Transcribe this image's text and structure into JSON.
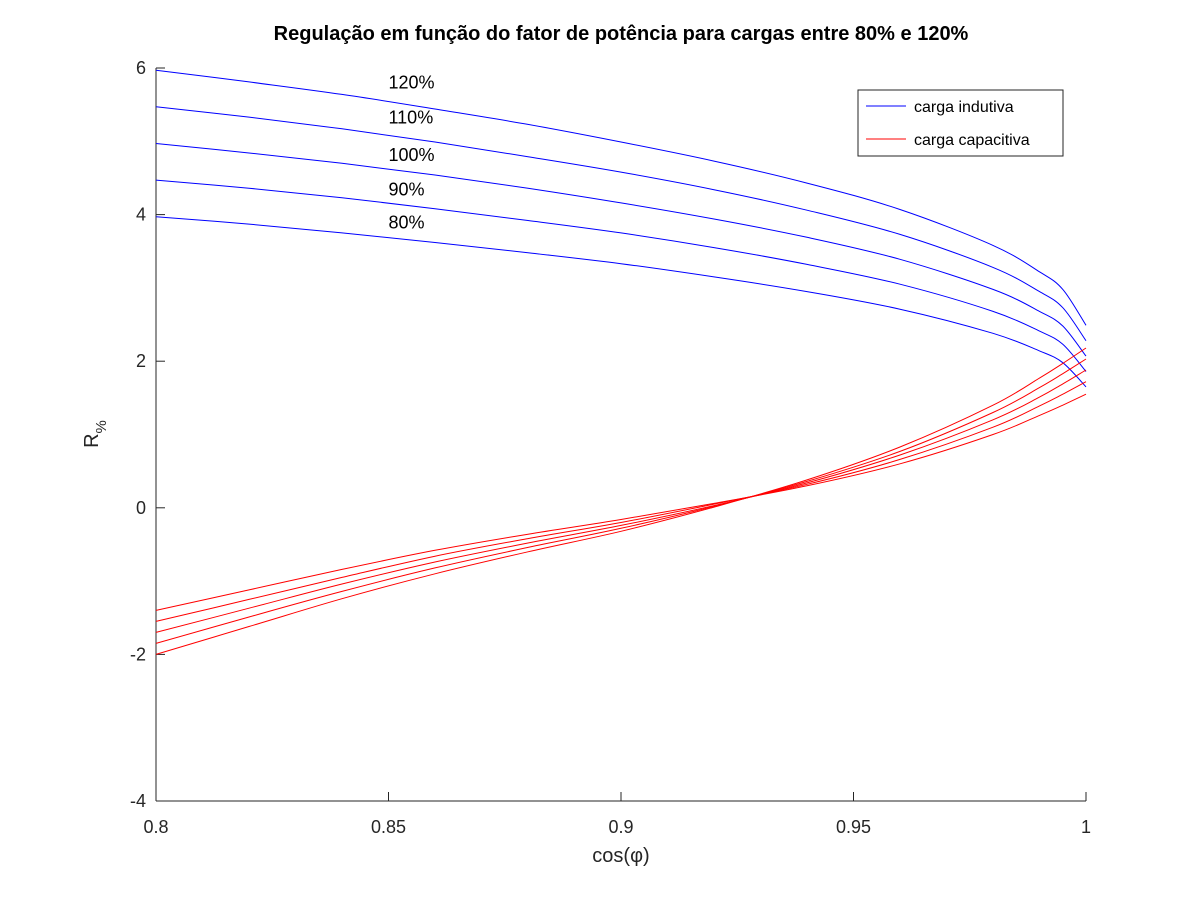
{
  "chart_data": {
    "type": "line",
    "title": "Regulação em função do fator de potência para cargas entre 80% e 120%",
    "xlabel": "cos(φ)",
    "ylabel_main": "R",
    "ylabel_sub": "%",
    "xlim": [
      0.8,
      1.0
    ],
    "ylim": [
      -4,
      6
    ],
    "xticks": [
      0.8,
      0.85,
      0.9,
      0.95,
      1.0
    ],
    "xtick_labels": [
      "0.8",
      "0.85",
      "0.9",
      "0.95",
      "1"
    ],
    "yticks": [
      -4,
      -2,
      0,
      2,
      4,
      6
    ],
    "ytick_labels": [
      "-4",
      "-2",
      "0",
      "2",
      "4",
      "6"
    ],
    "grid": false,
    "legend_position": "top-right",
    "legend": [
      {
        "label": "carga indutiva",
        "color": "#0000ff"
      },
      {
        "label": "carga capacitiva",
        "color": "#ff0000"
      }
    ],
    "x": [
      0.8,
      0.82,
      0.84,
      0.86,
      0.88,
      0.9,
      0.92,
      0.94,
      0.96,
      0.98,
      0.99,
      0.995,
      1.0
    ],
    "series": [
      {
        "name": "80% indutiva",
        "load": "80%",
        "kind": "indutiva",
        "color": "#0000ff",
        "values": [
          3.97,
          3.87,
          3.75,
          3.62,
          3.48,
          3.33,
          3.15,
          2.95,
          2.71,
          2.38,
          2.14,
          1.98,
          1.65
        ]
      },
      {
        "name": "90% indutiva",
        "load": "90%",
        "kind": "indutiva",
        "color": "#0000ff",
        "values": [
          4.47,
          4.36,
          4.23,
          4.08,
          3.92,
          3.75,
          3.55,
          3.32,
          3.05,
          2.68,
          2.41,
          2.23,
          1.86
        ]
      },
      {
        "name": "100% indutiva",
        "load": "100%",
        "kind": "indutiva",
        "color": "#0000ff",
        "values": [
          4.97,
          4.84,
          4.7,
          4.54,
          4.36,
          4.16,
          3.94,
          3.69,
          3.39,
          2.98,
          2.68,
          2.48,
          2.07
        ]
      },
      {
        "name": "110% indutiva",
        "load": "110%",
        "kind": "indutiva",
        "color": "#0000ff",
        "values": [
          5.47,
          5.33,
          5.17,
          4.99,
          4.79,
          4.58,
          4.34,
          4.06,
          3.73,
          3.28,
          2.95,
          2.73,
          2.28
        ]
      },
      {
        "name": "120% indutiva",
        "load": "120%",
        "kind": "indutiva",
        "color": "#0000ff",
        "values": [
          5.97,
          5.81,
          5.64,
          5.44,
          5.23,
          4.99,
          4.73,
          4.43,
          4.07,
          3.58,
          3.22,
          2.98,
          2.49
        ]
      },
      {
        "name": "80% capacitiva",
        "load": "80%",
        "kind": "capacitiva",
        "color": "#ff0000",
        "values": [
          -1.4,
          -1.12,
          -0.84,
          -0.58,
          -0.36,
          -0.16,
          0.06,
          0.3,
          0.6,
          1.0,
          1.26,
          1.4,
          1.55
        ]
      },
      {
        "name": "90% capacitiva",
        "load": "90%",
        "kind": "capacitiva",
        "color": "#ff0000",
        "values": [
          -1.55,
          -1.25,
          -0.95,
          -0.66,
          -0.42,
          -0.2,
          0.05,
          0.32,
          0.66,
          1.1,
          1.39,
          1.55,
          1.72
        ]
      },
      {
        "name": "100% capacitiva",
        "load": "100%",
        "kind": "capacitiva",
        "color": "#ff0000",
        "values": [
          -1.7,
          -1.37,
          -1.04,
          -0.74,
          -0.48,
          -0.24,
          0.03,
          0.34,
          0.72,
          1.2,
          1.51,
          1.69,
          1.88
        ]
      },
      {
        "name": "110% capacitiva",
        "load": "110%",
        "kind": "capacitiva",
        "color": "#ff0000",
        "values": [
          -1.85,
          -1.49,
          -1.14,
          -0.82,
          -0.54,
          -0.28,
          0.02,
          0.36,
          0.77,
          1.3,
          1.64,
          1.83,
          2.03
        ]
      },
      {
        "name": "120% capacitiva",
        "load": "120%",
        "kind": "capacitiva",
        "color": "#ff0000",
        "values": [
          -2.0,
          -1.62,
          -1.24,
          -0.9,
          -0.6,
          -0.32,
          0.01,
          0.38,
          0.83,
          1.4,
          1.77,
          1.97,
          2.18
        ]
      }
    ],
    "annotations": [
      {
        "text": "120%",
        "x": 0.85,
        "y": 5.72
      },
      {
        "text": "110%",
        "x": 0.85,
        "y": 5.24
      },
      {
        "text": "100%",
        "x": 0.85,
        "y": 4.73
      },
      {
        "text": "90%",
        "x": 0.85,
        "y": 4.26
      },
      {
        "text": "80%",
        "x": 0.85,
        "y": 3.81
      }
    ]
  }
}
